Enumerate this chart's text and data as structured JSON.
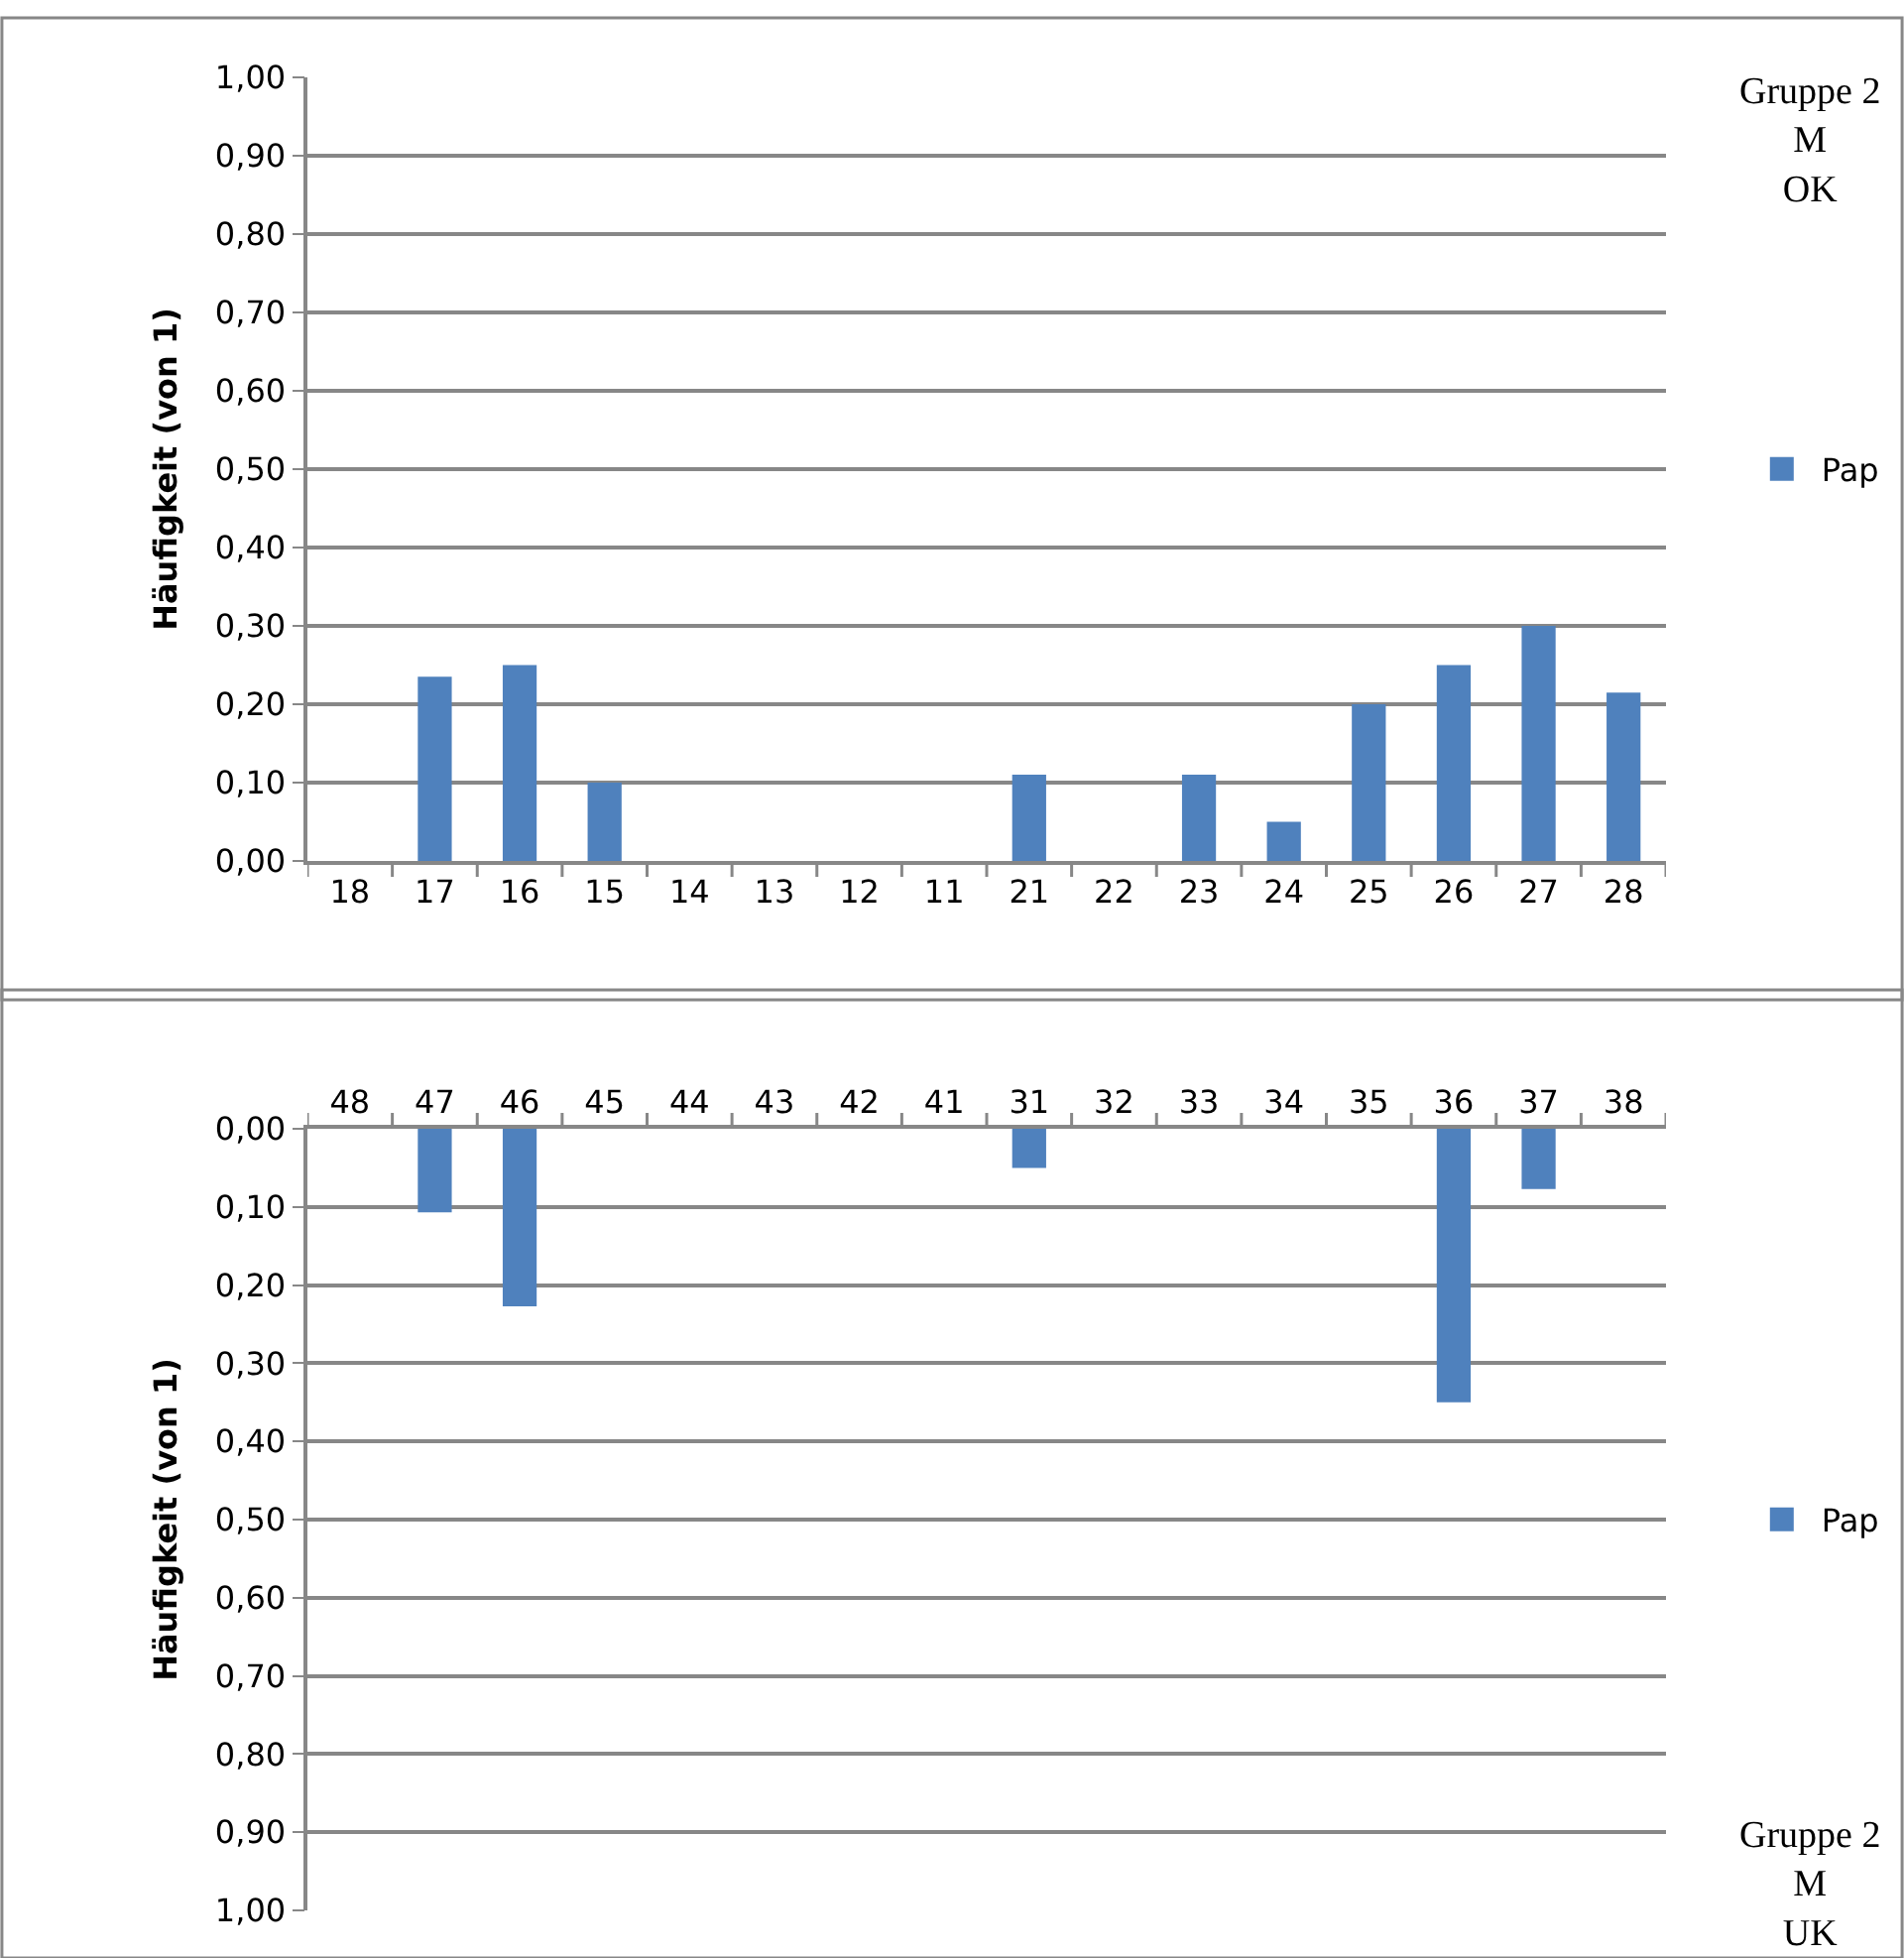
{
  "chart_data": [
    {
      "type": "bar",
      "ylabel": "Häufigkeit (von 1)",
      "categories": [
        "18",
        "17",
        "16",
        "15",
        "14",
        "13",
        "12",
        "11",
        "21",
        "22",
        "23",
        "24",
        "25",
        "26",
        "27",
        "28"
      ],
      "series": [
        {
          "name": "Pap",
          "color": "#4f81bd",
          "values": [
            null,
            0.235,
            0.25,
            0.1,
            null,
            null,
            null,
            null,
            0.11,
            null,
            0.11,
            0.05,
            0.2,
            0.25,
            0.3,
            0.215
          ]
        }
      ],
      "ylim": [
        0,
        1
      ],
      "yticks": [
        {
          "value": 0,
          "label": "0,00"
        },
        {
          "value": 0.1,
          "label": "0,10"
        },
        {
          "value": 0.2,
          "label": "0,20"
        },
        {
          "value": 0.3,
          "label": "0,30"
        },
        {
          "value": 0.4,
          "label": "0,40"
        },
        {
          "value": 0.5,
          "label": "0,50"
        },
        {
          "value": 0.6,
          "label": "0,60"
        },
        {
          "value": 0.7,
          "label": "0,70"
        },
        {
          "value": 0.8,
          "label": "0,80"
        },
        {
          "value": 0.9,
          "label": "0,90"
        },
        {
          "value": 1,
          "label": "1,00"
        }
      ],
      "grid": "y",
      "legend": "right",
      "annotations": [
        "Gruppe 2\nM\nOK"
      ]
    },
    {
      "type": "bar",
      "ylabel": "Häufigkeit (von 1)",
      "categories": [
        "48",
        "47",
        "46",
        "45",
        "44",
        "43",
        "42",
        "41",
        "31",
        "32",
        "33",
        "34",
        "35",
        "36",
        "37",
        "38"
      ],
      "series": [
        {
          "name": "Pap",
          "color": "#4f81bd",
          "values": [
            null,
            0.107,
            0.227,
            null,
            null,
            null,
            null,
            null,
            0.05,
            null,
            null,
            null,
            null,
            0.35,
            0.077,
            null
          ]
        }
      ],
      "ylim": [
        1,
        0
      ],
      "yticks": [
        {
          "value": 0,
          "label": "0,00"
        },
        {
          "value": 0.1,
          "label": "0,10"
        },
        {
          "value": 0.2,
          "label": "0,20"
        },
        {
          "value": 0.3,
          "label": "0,30"
        },
        {
          "value": 0.4,
          "label": "0,40"
        },
        {
          "value": 0.5,
          "label": "0,50"
        },
        {
          "value": 0.6,
          "label": "0,60"
        },
        {
          "value": 0.7,
          "label": "0,70"
        },
        {
          "value": 0.8,
          "label": "0,80"
        },
        {
          "value": 0.9,
          "label": "0,90"
        },
        {
          "value": 1,
          "label": "1,00"
        }
      ],
      "grid": "y",
      "legend": "right",
      "annotations": [
        "Gruppe 2\nM\nUK"
      ]
    }
  ]
}
